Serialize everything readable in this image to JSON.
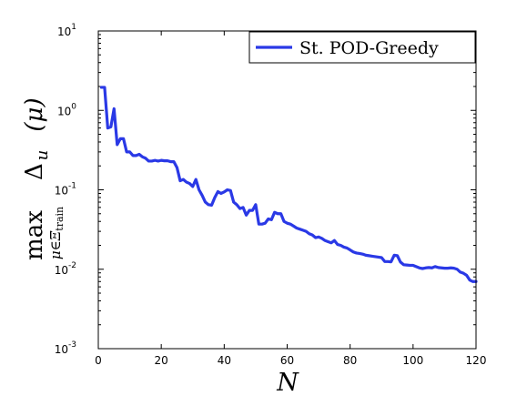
{
  "chart_data": {
    "type": "line",
    "title": "",
    "xlabel": "N",
    "ylabel": {
      "operator": "max",
      "subscript_prefix": "μ∈Ξ",
      "subscript_sub": "train",
      "symbol": "Δ",
      "symbol_sub": "u",
      "argument": "(μ)"
    },
    "xlim": [
      0,
      120
    ],
    "ylim": [
      0.001,
      10
    ],
    "yscale": "log",
    "grid": false,
    "legend_position": "top-right",
    "x_ticks": [
      0,
      20,
      40,
      60,
      80,
      100,
      120
    ],
    "y_ticks": [
      {
        "value": 0.001,
        "base": "10",
        "exp": "-3"
      },
      {
        "value": 0.01,
        "base": "10",
        "exp": "-2"
      },
      {
        "value": 0.1,
        "base": "10",
        "exp": "-1"
      },
      {
        "value": 1,
        "base": "10",
        "exp": "0"
      },
      {
        "value": 10,
        "base": "10",
        "exp": "1"
      }
    ],
    "series": [
      {
        "name": "St. POD-Greedy",
        "color": "#2a39e6",
        "x": [
          1,
          2,
          3,
          4,
          5,
          6,
          7,
          8,
          9,
          10,
          11,
          12,
          13,
          14,
          15,
          16,
          17,
          18,
          19,
          20,
          21,
          22,
          23,
          24,
          25,
          26,
          27,
          28,
          29,
          30,
          31,
          32,
          33,
          34,
          35,
          36,
          37,
          38,
          39,
          40,
          41,
          42,
          43,
          44,
          45,
          46,
          47,
          48,
          49,
          50,
          51,
          52,
          53,
          54,
          55,
          56,
          57,
          58,
          59,
          60,
          61,
          62,
          63,
          64,
          65,
          66,
          67,
          68,
          69,
          70,
          71,
          72,
          73,
          74,
          75,
          76,
          77,
          78,
          79,
          80,
          81,
          82,
          83,
          84,
          85,
          86,
          87,
          88,
          89,
          90,
          91,
          92,
          93,
          94,
          95,
          96,
          97,
          98,
          99,
          100,
          101,
          102,
          103,
          104,
          105,
          106,
          107,
          108,
          109,
          110,
          111,
          112,
          113,
          114,
          115,
          116,
          117,
          118,
          119,
          120
        ],
        "y": [
          1.95,
          1.95,
          0.6,
          0.62,
          1.05,
          0.37,
          0.44,
          0.44,
          0.3,
          0.3,
          0.27,
          0.27,
          0.28,
          0.26,
          0.25,
          0.23,
          0.23,
          0.235,
          0.23,
          0.235,
          0.232,
          0.232,
          0.226,
          0.226,
          0.19,
          0.13,
          0.135,
          0.125,
          0.12,
          0.11,
          0.135,
          0.1,
          0.085,
          0.07,
          0.065,
          0.064,
          0.08,
          0.095,
          0.09,
          0.094,
          0.1,
          0.098,
          0.07,
          0.065,
          0.058,
          0.06,
          0.048,
          0.055,
          0.055,
          0.065,
          0.037,
          0.037,
          0.038,
          0.043,
          0.042,
          0.052,
          0.05,
          0.05,
          0.04,
          0.038,
          0.037,
          0.035,
          0.033,
          0.032,
          0.031,
          0.03,
          0.028,
          0.027,
          0.025,
          0.0255,
          0.0245,
          0.023,
          0.0222,
          0.0215,
          0.023,
          0.0205,
          0.02,
          0.019,
          0.0185,
          0.0175,
          0.0165,
          0.016,
          0.0158,
          0.0155,
          0.015,
          0.0148,
          0.0146,
          0.0144,
          0.0142,
          0.014,
          0.0125,
          0.0125,
          0.0124,
          0.015,
          0.0148,
          0.0123,
          0.0114,
          0.0113,
          0.0112,
          0.0112,
          0.0108,
          0.0104,
          0.0102,
          0.0104,
          0.0105,
          0.0104,
          0.0108,
          0.0105,
          0.0104,
          0.0103,
          0.0103,
          0.0104,
          0.0103,
          0.01,
          0.0092,
          0.0089,
          0.0084,
          0.0073,
          0.007,
          0.007
        ]
      }
    ]
  }
}
